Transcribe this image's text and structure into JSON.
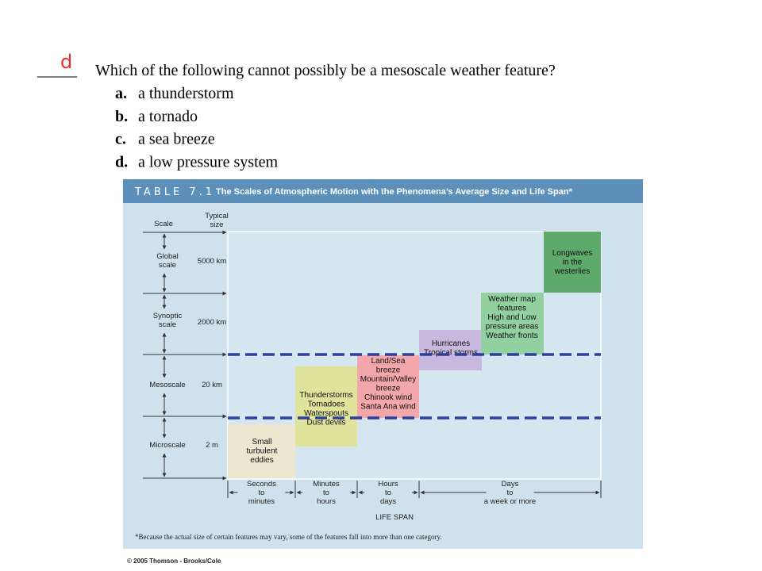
{
  "question": {
    "answer_mark": "d",
    "blank": "_____",
    "prompt": "Which of the following cannot possibly be a mesoscale weather feature?",
    "options": [
      {
        "letter": "a.",
        "text": "a thunderstorm"
      },
      {
        "letter": "b.",
        "text": "a tornado"
      },
      {
        "letter": "c.",
        "text": "a sea breeze"
      },
      {
        "letter": "d.",
        "text": "a low pressure system"
      }
    ]
  },
  "table": {
    "number": "TABLE 7.1",
    "title": "The Scales of Atmospheric Motion with the Phenomena’s Average Size and Life Span*",
    "scale_header": "Scale",
    "size_header": [
      "Typical",
      "size"
    ],
    "scales": [
      {
        "name": [
          "Global",
          "scale"
        ],
        "size": "5000 km"
      },
      {
        "name": [
          "Synoptic",
          "scale"
        ],
        "size": "2000 km"
      },
      {
        "name": [
          "Mesoscale"
        ],
        "size": "20 km"
      },
      {
        "name": [
          "Microscale"
        ],
        "size": "2 m"
      }
    ],
    "features": [
      [
        "Small",
        "turbulent",
        "eddies"
      ],
      [
        "Thunderstorms",
        "Tornadoes",
        "Waterspouts",
        "Dust devils"
      ],
      [
        "Land/Sea",
        "breeze",
        "Mountain/Valley",
        "breeze",
        "Chinook wind",
        "Santa Ana wind"
      ],
      [
        "Hurricanes",
        "Tropical storms"
      ],
      [
        "Weather map",
        "features",
        "High and Low",
        "pressure areas",
        "Weather fronts"
      ],
      [
        "Longwaves",
        "in the",
        "westerlies"
      ]
    ],
    "life_spans": [
      [
        "Seconds",
        "to",
        "minutes"
      ],
      [
        "Minutes",
        "to",
        "hours"
      ],
      [
        "Hours",
        "to",
        "days"
      ],
      [
        "Days",
        "to",
        "a week or more"
      ]
    ],
    "life_span_label": "LIFE SPAN",
    "footnote": "*Because the actual size of certain features may vary, some of the features fall into more than one category.",
    "credit": "© 2005 Thomson - Brooks/Cole"
  }
}
